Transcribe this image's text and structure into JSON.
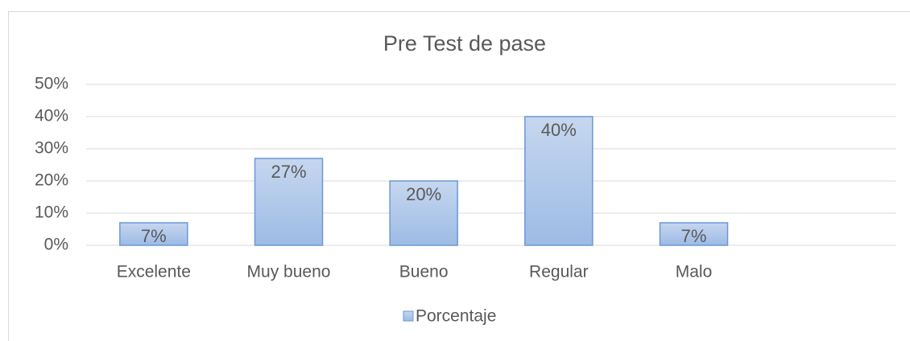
{
  "chart_data": {
    "type": "bar",
    "title": "Pre Test de pase",
    "categories": [
      "Excelente",
      "Muy bueno",
      "Bueno",
      "Regular",
      "Malo",
      null
    ],
    "series": [
      {
        "name": "Porcentaje",
        "color": "#a9c4e8",
        "values": [
          7,
          27,
          20,
          40,
          7,
          null
        ],
        "value_labels": [
          "7%",
          "27%",
          "20%",
          "40%",
          "7%",
          null
        ]
      }
    ],
    "ylim": [
      0,
      50
    ],
    "yticks": [
      {
        "value": 0,
        "label": "0%"
      },
      {
        "value": 10,
        "label": "10%"
      },
      {
        "value": 20,
        "label": "20%"
      },
      {
        "value": 30,
        "label": "30%"
      },
      {
        "value": 40,
        "label": "40%"
      },
      {
        "value": 50,
        "label": "50%"
      }
    ],
    "grid": true,
    "legend": "bottom"
  }
}
